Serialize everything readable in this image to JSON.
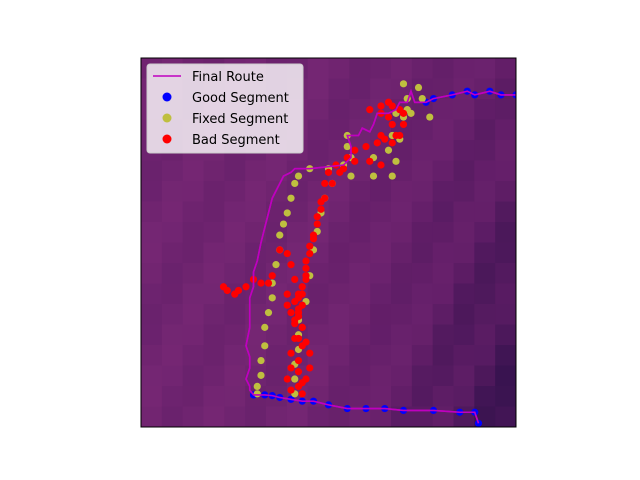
{
  "chart_data": {
    "type": "scatter",
    "title": "",
    "xlabel": "",
    "ylabel": "",
    "axes_ticks_visible": false,
    "xlim": [
      0,
      100
    ],
    "ylim": [
      0,
      100
    ],
    "legend_position": "upper-left",
    "background": {
      "kind": "heatmap",
      "description_colors": [
        "#3c1352",
        "#5a1d65",
        "#6e2470",
        "#7a2a78",
        "#2a0f47"
      ]
    },
    "series": [
      {
        "name": "Final Route",
        "kind": "line",
        "color": "#bf00bf",
        "points": [
          [
            90,
            1
          ],
          [
            89,
            4
          ],
          [
            85,
            4
          ],
          [
            78,
            4.5
          ],
          [
            70,
            4.5
          ],
          [
            65,
            5
          ],
          [
            60,
            5
          ],
          [
            55,
            5
          ],
          [
            50,
            6
          ],
          [
            46,
            7
          ],
          [
            43,
            7
          ],
          [
            40,
            7.5
          ],
          [
            37,
            8
          ],
          [
            35,
            8.5
          ],
          [
            33,
            8.7
          ],
          [
            30,
            8.7
          ],
          [
            29,
            10
          ],
          [
            29,
            11
          ],
          [
            28,
            13
          ],
          [
            29,
            16
          ],
          [
            29,
            19
          ],
          [
            28,
            22
          ],
          [
            29,
            27
          ],
          [
            29,
            31
          ],
          [
            29,
            35
          ],
          [
            30,
            38
          ],
          [
            30,
            42
          ],
          [
            31,
            45
          ],
          [
            32,
            50
          ],
          [
            33,
            54
          ],
          [
            34,
            58
          ],
          [
            35,
            62
          ],
          [
            37,
            66
          ],
          [
            38,
            68
          ],
          [
            40,
            69
          ],
          [
            41,
            70
          ],
          [
            45,
            70
          ],
          [
            54,
            71
          ],
          [
            56,
            73
          ],
          [
            56,
            76
          ],
          [
            55,
            79
          ],
          [
            58,
            79
          ],
          [
            59,
            81
          ],
          [
            61,
            80
          ],
          [
            62,
            82
          ],
          [
            63,
            85
          ],
          [
            66,
            85
          ],
          [
            68,
            86
          ],
          [
            69,
            88
          ],
          [
            71,
            88
          ],
          [
            72,
            91
          ],
          [
            73,
            88
          ],
          [
            76,
            88
          ],
          [
            78,
            89
          ],
          [
            83,
            90
          ],
          [
            87,
            91
          ],
          [
            89,
            90
          ],
          [
            93,
            91
          ],
          [
            96,
            90
          ],
          [
            100,
            90
          ]
        ]
      },
      {
        "name": "Good Segment",
        "kind": "scatter",
        "color": "#0000ff",
        "points": [
          [
            90,
            1
          ],
          [
            89,
            4
          ],
          [
            85,
            4
          ],
          [
            78,
            4.5
          ],
          [
            70,
            4.5
          ],
          [
            65,
            5
          ],
          [
            60,
            5
          ],
          [
            55,
            5
          ],
          [
            50,
            6
          ],
          [
            46,
            7
          ],
          [
            43,
            7
          ],
          [
            40,
            7.5
          ],
          [
            37,
            8
          ],
          [
            35,
            8.5
          ],
          [
            33,
            8.7
          ],
          [
            30,
            8.7
          ],
          [
            76,
            88
          ],
          [
            78,
            89
          ],
          [
            83,
            90
          ],
          [
            87,
            91
          ],
          [
            89,
            90
          ],
          [
            93,
            91
          ],
          [
            96,
            90
          ],
          [
            100,
            90
          ]
        ]
      },
      {
        "name": "Fixed Segment",
        "kind": "scatter",
        "color": "#bfbf3f",
        "points": [
          [
            41,
            9
          ],
          [
            41,
            13
          ],
          [
            41,
            17
          ],
          [
            42,
            21
          ],
          [
            42,
            25
          ],
          [
            42,
            29
          ],
          [
            44,
            34
          ],
          [
            45,
            41
          ],
          [
            46,
            48
          ],
          [
            47,
            53
          ],
          [
            48,
            58
          ],
          [
            49,
            62
          ],
          [
            51,
            66
          ],
          [
            56,
            68
          ],
          [
            62,
            68
          ],
          [
            67,
            68
          ],
          [
            68,
            72
          ],
          [
            69,
            78
          ],
          [
            70,
            84
          ],
          [
            72,
            85
          ],
          [
            77,
            84
          ],
          [
            75,
            89
          ],
          [
            74,
            92
          ],
          [
            70,
            93
          ],
          [
            71,
            89
          ],
          [
            71,
            86
          ],
          [
            68,
            85
          ],
          [
            67,
            79
          ],
          [
            66,
            75
          ],
          [
            62,
            73
          ],
          [
            56,
            73
          ],
          [
            55,
            76
          ],
          [
            55,
            79
          ],
          [
            54,
            71
          ],
          [
            50,
            70
          ],
          [
            45,
            70
          ],
          [
            42,
            68
          ],
          [
            41,
            66
          ],
          [
            40,
            62
          ],
          [
            39,
            58
          ],
          [
            38,
            55
          ],
          [
            37,
            52
          ],
          [
            37,
            48
          ],
          [
            36,
            44
          ],
          [
            35,
            39
          ],
          [
            35,
            35
          ],
          [
            34,
            31
          ],
          [
            33,
            27
          ],
          [
            33,
            22
          ],
          [
            32,
            18
          ],
          [
            32,
            14
          ],
          [
            31,
            11
          ],
          [
            31,
            9
          ]
        ]
      },
      {
        "name": "Bad Segment",
        "kind": "scatter",
        "color": "#ff0000",
        "points": [
          [
            43,
            9
          ],
          [
            43,
            12
          ],
          [
            42,
            15
          ],
          [
            42,
            18
          ],
          [
            43,
            22
          ],
          [
            42,
            24
          ],
          [
            43,
            27
          ],
          [
            42,
            30
          ],
          [
            43,
            33
          ],
          [
            43,
            36
          ],
          [
            44,
            40
          ],
          [
            44,
            43
          ],
          [
            45,
            47
          ],
          [
            46,
            51
          ],
          [
            47,
            55
          ],
          [
            48,
            59
          ],
          [
            49,
            62
          ],
          [
            51,
            66
          ],
          [
            53,
            69
          ],
          [
            55,
            73
          ],
          [
            57,
            75
          ],
          [
            60,
            76
          ],
          [
            63,
            77
          ],
          [
            64,
            79
          ],
          [
            65,
            78
          ],
          [
            67,
            77
          ],
          [
            68,
            79
          ],
          [
            67,
            82
          ],
          [
            66,
            84
          ],
          [
            64,
            85
          ],
          [
            61,
            86
          ],
          [
            64,
            87
          ],
          [
            66,
            88
          ],
          [
            67,
            87
          ],
          [
            69,
            86
          ],
          [
            70,
            85
          ],
          [
            70,
            82
          ],
          [
            69,
            79
          ],
          [
            64,
            71
          ],
          [
            61,
            72
          ],
          [
            57,
            72
          ],
          [
            54,
            70
          ],
          [
            52,
            71
          ],
          [
            50,
            69
          ],
          [
            49,
            66
          ],
          [
            48,
            61
          ],
          [
            47,
            57
          ],
          [
            46,
            52
          ],
          [
            45,
            49
          ],
          [
            44,
            45
          ],
          [
            44,
            41
          ],
          [
            43,
            38
          ],
          [
            42,
            35
          ],
          [
            42,
            31
          ],
          [
            41,
            28
          ],
          [
            41,
            24
          ],
          [
            40,
            20
          ],
          [
            40,
            16
          ],
          [
            39,
            13
          ],
          [
            40,
            10
          ],
          [
            42,
            11
          ],
          [
            44,
            13
          ],
          [
            45,
            16
          ],
          [
            45,
            20
          ],
          [
            44,
            23
          ],
          [
            43,
            27
          ],
          [
            42,
            30
          ],
          [
            41,
            34
          ],
          [
            39,
            36
          ],
          [
            39,
            33
          ],
          [
            40,
            31
          ],
          [
            41,
            29
          ],
          [
            42,
            32
          ],
          [
            42,
            36
          ],
          [
            41,
            40
          ],
          [
            40,
            44
          ],
          [
            39,
            47
          ],
          [
            37,
            48
          ],
          [
            35,
            41
          ],
          [
            34,
            39
          ],
          [
            32,
            39
          ],
          [
            30,
            40
          ],
          [
            28,
            38
          ],
          [
            26,
            37
          ],
          [
            25,
            36
          ],
          [
            23,
            37
          ],
          [
            22,
            38
          ]
        ]
      }
    ]
  }
}
